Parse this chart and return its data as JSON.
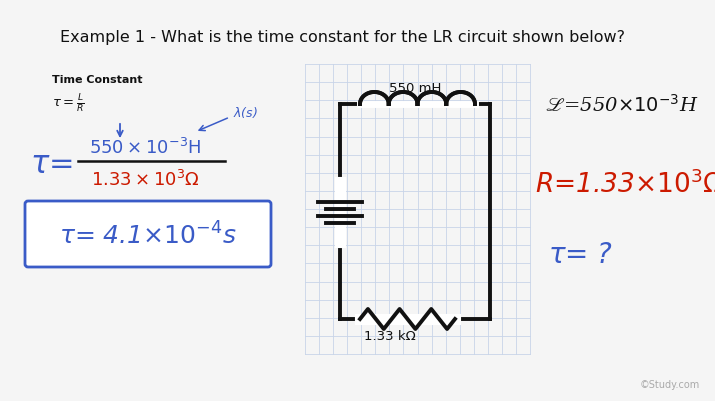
{
  "background_color": "#f5f5f5",
  "title_text": "Example 1 - What is the time constant for the LR circuit shown below?",
  "blue_color": "#3a5bc7",
  "red_color": "#cc1a00",
  "dark_color": "#111111",
  "grid_color": "#c8d4e8",
  "answer_border_color": "#3a5bc7",
  "watermark": "©Study.com",
  "inductor_label": "550 mH",
  "resistor_label": "1.33 kΩ"
}
